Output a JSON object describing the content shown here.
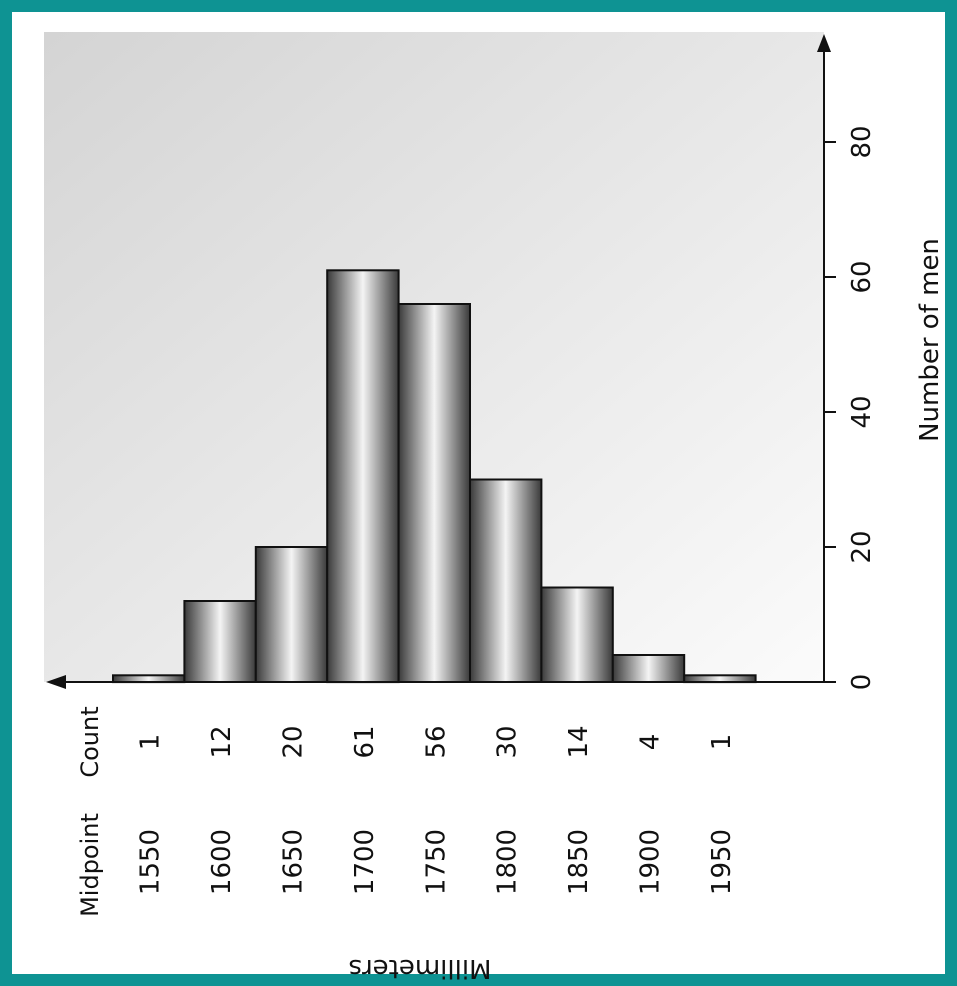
{
  "colors": {
    "frame": "#0e9393",
    "bar_stroke": "#111111",
    "plot_bg_top": "#d6d6d6",
    "plot_bg_bottom": "#fafafa"
  },
  "chart_data": {
    "type": "bar",
    "orientation": "horizontal (figure rotated 90°; bars rise toward the right)",
    "categories": [
      "1550",
      "1600",
      "1650",
      "1700",
      "1750",
      "1800",
      "1850",
      "1900",
      "1950"
    ],
    "values": [
      1,
      12,
      20,
      61,
      56,
      30,
      14,
      4,
      1
    ],
    "category_header": "Midpoint",
    "count_header": "Count",
    "count_labels": [
      "1",
      "12",
      "20",
      "61",
      "56",
      "30",
      "14",
      "4",
      "1"
    ],
    "xlabel": "Millimeters",
    "ylabel": "Number of men",
    "ylim": [
      0,
      90
    ],
    "yticks": [
      "0",
      "20",
      "40",
      "60",
      "80"
    ],
    "grid": false
  }
}
